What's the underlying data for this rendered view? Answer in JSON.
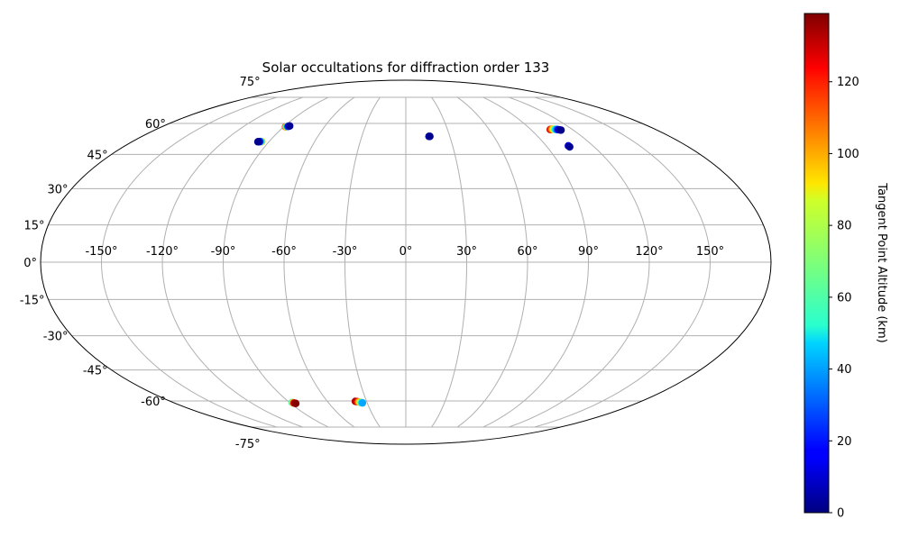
{
  "chart_data": {
    "type": "scatter",
    "title": "Solar occultations for diffraction order 133",
    "projection": "mollweide",
    "grid": true,
    "lon_ticks": [
      -150,
      -120,
      -90,
      -60,
      -30,
      0,
      30,
      60,
      90,
      120,
      150
    ],
    "lat_ticks": [
      75,
      60,
      45,
      30,
      15,
      0,
      -15,
      -30,
      -45,
      -60,
      -75
    ],
    "lon_tick_labels": [
      "-150°",
      "-120°",
      "-90°",
      "-60°",
      "-30°",
      "0°",
      "30°",
      "60°",
      "90°",
      "120°",
      "150°"
    ],
    "lat_tick_labels": [
      "75°",
      "60°",
      "45°",
      "30°",
      "15°",
      "0°",
      "-15°",
      "-30°",
      "-45°",
      "-60°",
      "-75°"
    ],
    "colorbar": {
      "label": "Tangent Point Altitude (km)",
      "colormap": "jet",
      "range": [
        0,
        139
      ],
      "ticks": [
        0,
        20,
        40,
        60,
        80,
        100,
        120
      ],
      "tick_labels": [
        "0",
        "20",
        "40",
        "60",
        "80",
        "100",
        "120"
      ]
    },
    "points": [
      {
        "lon": -88.7,
        "lat": 58.3,
        "alt": 118
      },
      {
        "lon": -88.3,
        "lat": 58.3,
        "alt": 95
      },
      {
        "lon": -87.9,
        "lat": 58.4,
        "alt": 70
      },
      {
        "lon": -87.5,
        "lat": 58.4,
        "alt": 45
      },
      {
        "lon": -87.1,
        "lat": 58.5,
        "alt": 25
      },
      {
        "lon": -86.7,
        "lat": 58.6,
        "alt": 10
      },
      {
        "lon": -86.3,
        "lat": 58.7,
        "alt": 3
      },
      {
        "lon": -94.8,
        "lat": 51.0,
        "alt": 95
      },
      {
        "lon": -95.4,
        "lat": 51.0,
        "alt": 60
      },
      {
        "lon": -96.0,
        "lat": 51.0,
        "alt": 25
      },
      {
        "lon": -96.6,
        "lat": 50.9,
        "alt": 8
      },
      {
        "lon": -97.2,
        "lat": 50.9,
        "alt": 2
      },
      {
        "lon": 15.8,
        "lat": 53.5,
        "alt": 5
      },
      {
        "lon": 16.4,
        "lat": 53.5,
        "alt": 2
      },
      {
        "lon": 104.0,
        "lat": 56.9,
        "alt": 128
      },
      {
        "lon": 104.8,
        "lat": 57.0,
        "alt": 118
      },
      {
        "lon": 105.6,
        "lat": 57.1,
        "alt": 105
      },
      {
        "lon": 106.4,
        "lat": 57.1,
        "alt": 90
      },
      {
        "lon": 107.2,
        "lat": 57.0,
        "alt": 70
      },
      {
        "lon": 108.0,
        "lat": 57.0,
        "alt": 50
      },
      {
        "lon": 108.8,
        "lat": 56.9,
        "alt": 30
      },
      {
        "lon": 109.6,
        "lat": 56.8,
        "alt": 15
      },
      {
        "lon": 110.4,
        "lat": 56.7,
        "alt": 5
      },
      {
        "lon": 111.2,
        "lat": 56.6,
        "alt": 2
      },
      {
        "lon": 104.2,
        "lat": 49.0,
        "alt": 12
      },
      {
        "lon": 104.4,
        "lat": 48.5,
        "alt": 3
      },
      {
        "lon": -38.6,
        "lat": -60.2,
        "alt": 130
      },
      {
        "lon": -37.9,
        "lat": -60.3,
        "alt": 135
      },
      {
        "lon": -37.2,
        "lat": -60.4,
        "alt": 125
      },
      {
        "lon": -36.5,
        "lat": -60.5,
        "alt": 110
      },
      {
        "lon": -35.8,
        "lat": -60.6,
        "alt": 95
      },
      {
        "lon": -35.1,
        "lat": -60.8,
        "alt": 75
      },
      {
        "lon": -34.4,
        "lat": -60.9,
        "alt": 55
      },
      {
        "lon": -33.7,
        "lat": -61.0,
        "alt": 40
      },
      {
        "lon": -88.0,
        "lat": -60.8,
        "alt": 60
      },
      {
        "lon": -87.5,
        "lat": -60.9,
        "alt": 95
      },
      {
        "lon": -87.0,
        "lat": -61.1,
        "alt": 125
      },
      {
        "lon": -86.5,
        "lat": -61.2,
        "alt": 135
      },
      {
        "lon": -86.0,
        "lat": -61.3,
        "alt": 138
      }
    ]
  }
}
